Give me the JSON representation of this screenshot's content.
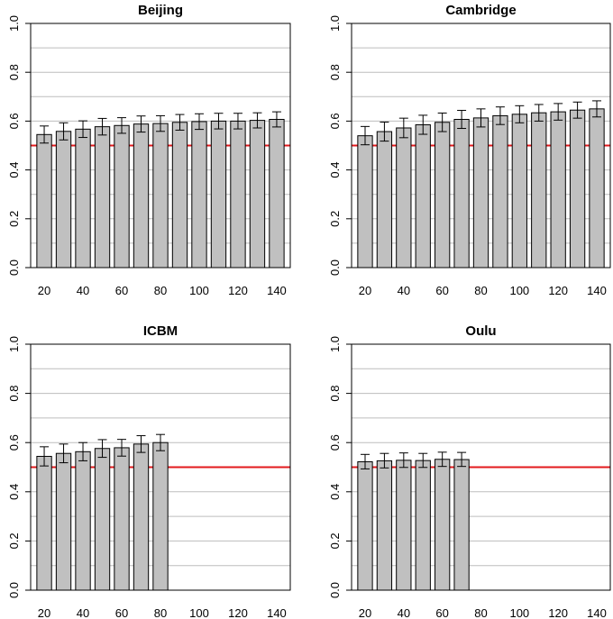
{
  "reference_color": "#e31a1c",
  "bar_color": "#c0c0c0",
  "chart_data": [
    {
      "type": "bar",
      "title": "Beijing",
      "xlabel": "",
      "ylabel": "",
      "x": [
        20,
        30,
        40,
        50,
        60,
        70,
        80,
        90,
        100,
        110,
        120,
        130,
        140
      ],
      "x_tick_labels": [
        "20",
        "40",
        "60",
        "80",
        "100",
        "120",
        "140"
      ],
      "values": [
        0.545,
        0.558,
        0.567,
        0.577,
        0.582,
        0.588,
        0.59,
        0.595,
        0.598,
        0.6,
        0.6,
        0.603,
        0.607
      ],
      "error_low": [
        0.51,
        0.523,
        0.533,
        0.543,
        0.55,
        0.555,
        0.558,
        0.563,
        0.566,
        0.568,
        0.568,
        0.572,
        0.576
      ],
      "error_high": [
        0.58,
        0.593,
        0.601,
        0.611,
        0.614,
        0.621,
        0.622,
        0.627,
        0.63,
        0.632,
        0.632,
        0.634,
        0.638
      ],
      "reference_line": 0.5,
      "ylim": [
        0,
        1
      ],
      "y_ticks": [
        0.0,
        0.2,
        0.4,
        0.6,
        0.8,
        1.0
      ],
      "y_tick_labels": [
        "0.0",
        "0.2",
        "0.4",
        "0.6",
        "0.8",
        "1.0"
      ],
      "y_gridlines": [
        0.1,
        0.2,
        0.3,
        0.4,
        0.5,
        0.6,
        0.7,
        0.8,
        0.9
      ]
    },
    {
      "type": "bar",
      "title": "Cambridge",
      "xlabel": "",
      "ylabel": "",
      "x": [
        20,
        30,
        40,
        50,
        60,
        70,
        80,
        90,
        100,
        110,
        120,
        130,
        140
      ],
      "x_tick_labels": [
        "20",
        "40",
        "60",
        "80",
        "100",
        "120",
        "140"
      ],
      "values": [
        0.54,
        0.557,
        0.572,
        0.585,
        0.595,
        0.607,
        0.613,
        0.622,
        0.628,
        0.634,
        0.638,
        0.645,
        0.65
      ],
      "error_low": [
        0.503,
        0.518,
        0.532,
        0.546,
        0.557,
        0.57,
        0.576,
        0.586,
        0.593,
        0.6,
        0.604,
        0.612,
        0.617
      ],
      "error_high": [
        0.578,
        0.596,
        0.612,
        0.624,
        0.633,
        0.644,
        0.65,
        0.658,
        0.663,
        0.668,
        0.672,
        0.678,
        0.683
      ],
      "reference_line": 0.5,
      "ylim": [
        0,
        1
      ],
      "y_ticks": [
        0.0,
        0.2,
        0.4,
        0.6,
        0.8,
        1.0
      ],
      "y_tick_labels": [
        "0.0",
        "0.2",
        "0.4",
        "0.6",
        "0.8",
        "1.0"
      ],
      "y_gridlines": [
        0.1,
        0.2,
        0.3,
        0.4,
        0.5,
        0.6,
        0.7,
        0.8,
        0.9
      ]
    },
    {
      "type": "bar",
      "title": "ICBM",
      "xlabel": "",
      "ylabel": "",
      "x": [
        20,
        30,
        40,
        50,
        60,
        70,
        80
      ],
      "x_tick_labels": [
        "20",
        "40",
        "60",
        "80",
        "100",
        "120",
        "140"
      ],
      "x_tick_positions": [
        20,
        40,
        60,
        80,
        100,
        120,
        140
      ],
      "values": [
        0.544,
        0.556,
        0.563,
        0.576,
        0.579,
        0.594,
        0.6
      ],
      "error_low": [
        0.505,
        0.518,
        0.526,
        0.54,
        0.545,
        0.56,
        0.567
      ],
      "error_high": [
        0.583,
        0.594,
        0.6,
        0.612,
        0.613,
        0.628,
        0.633
      ],
      "reference_line": 0.5,
      "ylim": [
        0,
        1
      ],
      "y_ticks": [
        0.0,
        0.2,
        0.4,
        0.6,
        0.8,
        1.0
      ],
      "y_tick_labels": [
        "0.0",
        "0.2",
        "0.4",
        "0.6",
        "0.8",
        "1.0"
      ],
      "y_gridlines": [
        0.1,
        0.2,
        0.3,
        0.4,
        0.5,
        0.6,
        0.7,
        0.8,
        0.9
      ]
    },
    {
      "type": "bar",
      "title": "Oulu",
      "xlabel": "",
      "ylabel": "",
      "x": [
        20,
        30,
        40,
        50,
        60,
        70
      ],
      "x_tick_labels": [
        "20",
        "40",
        "60",
        "80",
        "100",
        "120",
        "140"
      ],
      "values": [
        0.522,
        0.526,
        0.528,
        0.527,
        0.532,
        0.531
      ],
      "error_low": [
        0.493,
        0.497,
        0.499,
        0.499,
        0.503,
        0.503
      ],
      "error_high": [
        0.552,
        0.556,
        0.558,
        0.556,
        0.561,
        0.56
      ],
      "reference_line": 0.5,
      "ylim": [
        0,
        1
      ],
      "y_ticks": [
        0.0,
        0.2,
        0.4,
        0.6,
        0.8,
        1.0
      ],
      "y_tick_labels": [
        "0.0",
        "0.2",
        "0.4",
        "0.6",
        "0.8",
        "1.0"
      ],
      "y_gridlines": [
        0.1,
        0.2,
        0.3,
        0.4,
        0.5,
        0.6,
        0.7,
        0.8,
        0.9
      ]
    }
  ]
}
